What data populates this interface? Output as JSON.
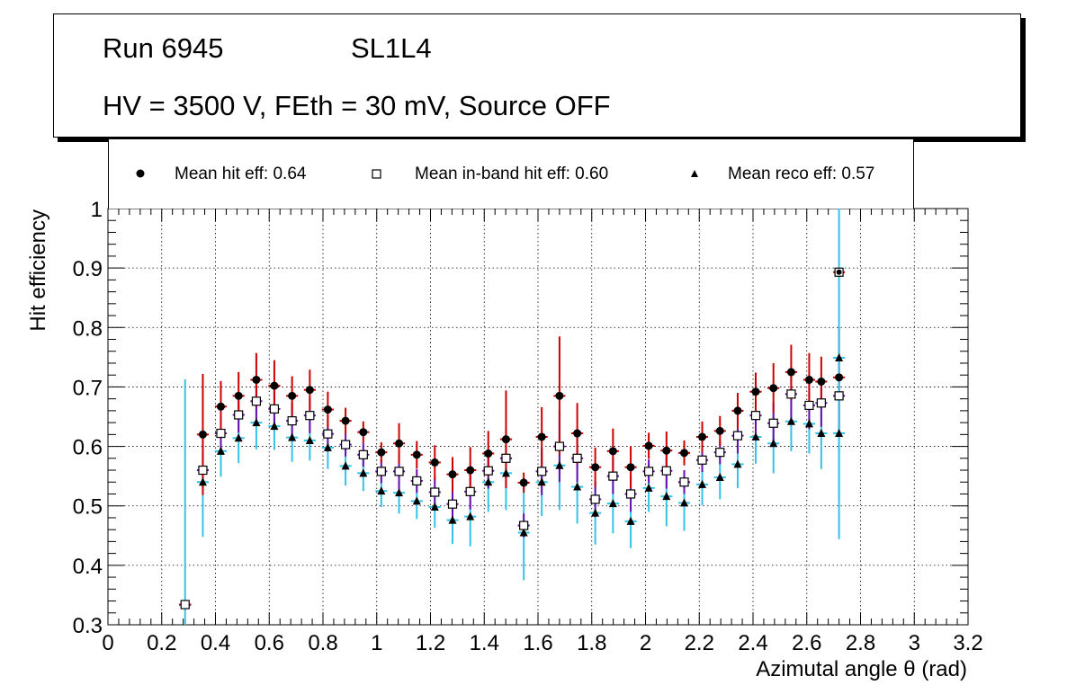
{
  "title_box": {
    "run": "Run 6945",
    "chamber": "SL1L4",
    "conditions": "HV = 3500 V, FEth = 30 mV, Source OFF"
  },
  "legend": [
    {
      "label": "Mean hit  eff: 0.64",
      "marker": "circle"
    },
    {
      "label": "Mean in-band hit eff: 0.60",
      "marker": "open-square"
    },
    {
      "label": "Mean reco eff: 0.57",
      "marker": "triangle"
    }
  ],
  "colors": {
    "hit_error": "#cc0000",
    "inband_error": "#6a0dad",
    "reco_error": "#33c3e8"
  },
  "chart_data": {
    "type": "scatter",
    "xlabel": "Azimutal angle θ (rad)",
    "ylabel": "Hit efficiency",
    "xlim": [
      0,
      3.2
    ],
    "ylim": [
      0.3,
      1.0
    ],
    "x_ticks": [
      "0",
      "0.2",
      "0.4",
      "0.6",
      "0.8",
      "1",
      "1.2",
      "1.4",
      "1.6",
      "1.8",
      "2",
      "2.2",
      "2.4",
      "2.6",
      "2.8",
      "3",
      "3.2"
    ],
    "y_ticks": [
      "0.3",
      "0.4",
      "0.5",
      "0.6",
      "0.7",
      "0.8",
      "0.9",
      "1"
    ],
    "grid": true,
    "bin_half_width": 0.022,
    "series": [
      {
        "name": "Mean hit  eff: 0.64",
        "marker": "circle",
        "x": [
          0.287,
          0.353,
          0.42,
          0.486,
          0.552,
          0.619,
          0.685,
          0.751,
          0.818,
          0.884,
          0.95,
          1.017,
          1.083,
          1.149,
          1.216,
          1.282,
          1.348,
          1.415,
          1.481,
          1.547,
          1.614,
          1.68,
          1.746,
          1.813,
          1.879,
          1.945,
          2.012,
          2.078,
          2.144,
          2.211,
          2.277,
          2.343,
          2.41,
          2.476,
          2.542,
          2.609,
          2.654,
          2.72
        ],
        "y": [
          0.334,
          0.62,
          0.667,
          0.685,
          0.712,
          0.702,
          0.685,
          0.695,
          0.662,
          0.643,
          0.624,
          0.59,
          0.605,
          0.586,
          0.573,
          0.553,
          0.56,
          0.588,
          0.612,
          0.539,
          0.616,
          0.685,
          0.622,
          0.565,
          0.592,
          0.565,
          0.601,
          0.593,
          0.589,
          0.616,
          0.626,
          0.66,
          0.692,
          0.698,
          0.725,
          0.712,
          0.709,
          0.716
        ],
        "err": [
          0.0,
          0.102,
          0.043,
          0.04,
          0.045,
          0.043,
          0.033,
          0.034,
          0.03,
          0.022,
          0.018,
          0.017,
          0.034,
          0.023,
          0.029,
          0.029,
          0.039,
          0.038,
          0.082,
          0.017,
          0.05,
          0.1,
          0.051,
          0.033,
          0.038,
          0.035,
          0.022,
          0.032,
          0.021,
          0.026,
          0.025,
          0.03,
          0.032,
          0.042,
          0.046,
          0.045,
          0.042,
          0.085
        ]
      },
      {
        "name": "Mean in-band hit eff: 0.60",
        "marker": "open-square",
        "x": [
          0.287,
          0.353,
          0.42,
          0.486,
          0.552,
          0.619,
          0.685,
          0.751,
          0.818,
          0.884,
          0.95,
          1.017,
          1.083,
          1.149,
          1.216,
          1.282,
          1.348,
          1.415,
          1.481,
          1.547,
          1.614,
          1.68,
          1.746,
          1.813,
          1.879,
          1.945,
          2.012,
          2.078,
          2.144,
          2.211,
          2.277,
          2.343,
          2.41,
          2.476,
          2.542,
          2.609,
          2.654,
          2.72
        ],
        "y": [
          0.334,
          0.56,
          0.622,
          0.653,
          0.676,
          0.663,
          0.643,
          0.652,
          0.621,
          0.603,
          0.586,
          0.558,
          0.558,
          0.542,
          0.523,
          0.503,
          0.524,
          0.559,
          0.58,
          0.467,
          0.558,
          0.6,
          0.58,
          0.511,
          0.55,
          0.52,
          0.558,
          0.559,
          0.54,
          0.577,
          0.59,
          0.618,
          0.652,
          0.639,
          0.688,
          0.669,
          0.673,
          0.685
        ],
        "err": [
          0.0,
          0.03,
          0.03,
          0.03,
          0.03,
          0.03,
          0.03,
          0.03,
          0.03,
          0.02,
          0.02,
          0.02,
          0.03,
          0.02,
          0.025,
          0.025,
          0.03,
          0.03,
          0.05,
          0.02,
          0.04,
          0.06,
          0.04,
          0.03,
          0.03,
          0.03,
          0.02,
          0.03,
          0.02,
          0.02,
          0.02,
          0.03,
          0.03,
          0.035,
          0.04,
          0.04,
          0.04,
          0.06
        ]
      },
      {
        "name": "Mean reco eff: 0.57",
        "marker": "triangle",
        "x": [
          0.287,
          0.353,
          0.42,
          0.486,
          0.552,
          0.619,
          0.685,
          0.751,
          0.818,
          0.884,
          0.95,
          1.017,
          1.083,
          1.149,
          1.216,
          1.282,
          1.348,
          1.415,
          1.481,
          1.547,
          1.614,
          1.68,
          1.746,
          1.813,
          1.879,
          1.945,
          2.012,
          2.078,
          2.144,
          2.211,
          2.277,
          2.343,
          2.41,
          2.476,
          2.542,
          2.609,
          2.654,
          2.72
        ],
        "y": [
          0.333,
          0.54,
          0.592,
          0.614,
          0.64,
          0.634,
          0.615,
          0.61,
          0.598,
          0.567,
          0.555,
          0.525,
          0.522,
          0.508,
          0.498,
          0.476,
          0.482,
          0.54,
          0.555,
          0.455,
          0.54,
          0.568,
          0.532,
          0.488,
          0.504,
          0.474,
          0.53,
          0.516,
          0.505,
          0.536,
          0.548,
          0.57,
          0.616,
          0.605,
          0.642,
          0.638,
          0.622,
          0.622
        ],
        "err": [
          0.38,
          0.092,
          0.043,
          0.042,
          0.045,
          0.04,
          0.041,
          0.034,
          0.036,
          0.033,
          0.03,
          0.027,
          0.035,
          0.03,
          0.035,
          0.04,
          0.05,
          0.05,
          0.062,
          0.08,
          0.057,
          0.075,
          0.062,
          0.053,
          0.05,
          0.045,
          0.04,
          0.05,
          0.047,
          0.035,
          0.037,
          0.04,
          0.045,
          0.05,
          0.05,
          0.05,
          0.06,
          0.11
        ]
      }
    ],
    "extra_points": [
      {
        "name": "reco-outlier",
        "marker": "triangle",
        "x": 2.72,
        "y": 0.749,
        "err": 0.305
      }
    ],
    "overflow_points": [
      {
        "name": "top-right-bin",
        "x": 2.72,
        "y": 0.893
      }
    ]
  }
}
